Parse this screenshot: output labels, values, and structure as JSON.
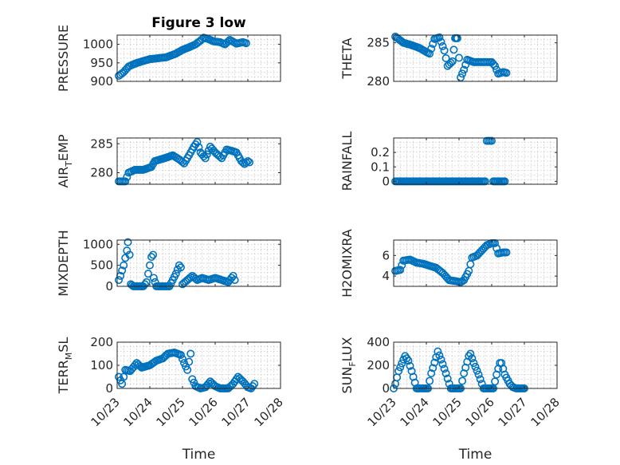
{
  "figure": {
    "title": "Figure 3 low"
  },
  "chart_data": [
    {
      "type": "scatter",
      "id": "pressure",
      "title": "Figure 3 low",
      "xlabel": "",
      "ylabel": "PRESSURE",
      "xlim": [
        0,
        5
      ],
      "ylim": [
        900,
        1025
      ],
      "yticks": [
        900,
        950,
        1000
      ],
      "yticklabels": [
        "900",
        "950",
        "1000"
      ],
      "xticks": [],
      "xticklabels": [],
      "show_yticklabels": true,
      "show_xticklabels": false,
      "grid": true,
      "series": [
        {
          "color": "#0072BD",
          "keys": [
            [
              0.05,
              915
            ],
            [
              0.2,
              925
            ],
            [
              0.35,
              940
            ],
            [
              0.55,
              948
            ],
            [
              0.8,
              955
            ],
            [
              1.0,
              960
            ],
            [
              1.3,
              963
            ],
            [
              1.5,
              965
            ],
            [
              1.8,
              975
            ],
            [
              2.0,
              985
            ],
            [
              2.2,
              992
            ],
            [
              2.4,
              1000
            ],
            [
              2.55,
              1010
            ],
            [
              2.65,
              1018
            ],
            [
              2.8,
              1014
            ],
            [
              2.95,
              1008
            ],
            [
              3.15,
              1006
            ],
            [
              3.3,
              1000
            ],
            [
              3.45,
              1012
            ],
            [
              3.65,
              1002
            ],
            [
              3.85,
              1006
            ],
            [
              3.95,
              1003
            ]
          ]
        }
      ]
    },
    {
      "type": "scatter",
      "id": "theta",
      "title": "",
      "xlabel": "",
      "ylabel": "THETA",
      "xlim": [
        0,
        5
      ],
      "ylim": [
        280,
        286
      ],
      "yticks": [
        280,
        285
      ],
      "yticklabels": [
        "280",
        "285"
      ],
      "xticks": [],
      "xticklabels": [],
      "show_yticklabels": true,
      "show_xticklabels": false,
      "grid": true,
      "series": [
        {
          "color": "#0072BD",
          "keys": [
            [
              0.05,
              285.8
            ],
            [
              0.3,
              285.0
            ],
            [
              0.55,
              284.7
            ],
            [
              0.8,
              284.3
            ],
            [
              1.0,
              283.8
            ],
            [
              1.1,
              283.6
            ],
            [
              1.25,
              285.5
            ],
            [
              1.4,
              285.7
            ],
            [
              1.55,
              284.0
            ],
            [
              1.65,
              282.0
            ],
            [
              1.8,
              282.6
            ],
            [
              1.88,
              285.6
            ],
            [
              1.95,
              285.6
            ],
            [
              2.05,
              280.5
            ],
            [
              2.15,
              281.5
            ],
            [
              2.25,
              282.8
            ],
            [
              2.45,
              282.5
            ],
            [
              2.65,
              282.5
            ],
            [
              2.85,
              282.5
            ],
            [
              3.0,
              282.5
            ],
            [
              3.1,
              282.0
            ],
            [
              3.2,
              281.0
            ],
            [
              3.35,
              281.2
            ],
            [
              3.45,
              281.1
            ]
          ]
        }
      ]
    },
    {
      "type": "scatter",
      "id": "air_temp",
      "title": "",
      "xlabel": "",
      "ylabel": "AIR",
      "ylabel_sub": "T",
      "ylabel_rest": "EMP",
      "xlim": [
        0,
        5
      ],
      "ylim": [
        278,
        286
      ],
      "yticks": [
        280,
        285
      ],
      "yticklabels": [
        "280",
        "285"
      ],
      "xticks": [],
      "xticklabels": [],
      "show_yticklabels": true,
      "show_xticklabels": false,
      "grid": true,
      "series": [
        {
          "color": "#0072BD",
          "keys": [
            [
              0.05,
              278.5
            ],
            [
              0.25,
              278.5
            ],
            [
              0.35,
              280.0
            ],
            [
              0.55,
              280.5
            ],
            [
              0.8,
              280.5
            ],
            [
              1.05,
              281.0
            ],
            [
              1.15,
              282.0
            ],
            [
              1.45,
              282.5
            ],
            [
              1.7,
              283.0
            ],
            [
              1.9,
              282.3
            ],
            [
              2.05,
              281.6
            ],
            [
              2.2,
              283.0
            ],
            [
              2.35,
              284.5
            ],
            [
              2.45,
              285.3
            ],
            [
              2.55,
              283.5
            ],
            [
              2.7,
              282.5
            ],
            [
              2.85,
              284.5
            ],
            [
              3.0,
              283.5
            ],
            [
              3.2,
              282.5
            ],
            [
              3.35,
              284.0
            ],
            [
              3.5,
              283.8
            ],
            [
              3.65,
              283.5
            ],
            [
              3.8,
              282.0
            ],
            [
              3.9,
              281.5
            ],
            [
              4.0,
              282.0
            ],
            [
              4.05,
              281.8
            ]
          ]
        }
      ]
    },
    {
      "type": "scatter",
      "id": "rainfall",
      "title": "",
      "xlabel": "",
      "ylabel": "RAINFALL",
      "xlim": [
        0,
        5
      ],
      "ylim": [
        -0.02,
        0.3
      ],
      "yticks": [
        0,
        0.1,
        0.2
      ],
      "yticklabels": [
        "0",
        "0.1",
        "0.2"
      ],
      "xticks": [],
      "xticklabels": [],
      "show_yticklabels": true,
      "show_xticklabels": false,
      "grid": true,
      "series": [
        {
          "color": "#0072BD",
          "keys": [
            [
              0.05,
              0
            ],
            [
              2.8,
              0
            ],
            [
              2.85,
              0.28
            ],
            [
              2.95,
              0.28
            ],
            [
              3.0,
              0.28
            ],
            [
              3.05,
              0
            ],
            [
              3.4,
              0
            ]
          ]
        }
      ]
    },
    {
      "type": "scatter",
      "id": "mixdepth",
      "title": "",
      "xlabel": "",
      "ylabel": "MIXDEPTH",
      "xlim": [
        0,
        5
      ],
      "ylim": [
        0,
        1100
      ],
      "yticks": [
        0,
        500,
        1000
      ],
      "yticklabels": [
        "0",
        "500",
        "1000"
      ],
      "xticks": [],
      "xticklabels": [],
      "show_yticklabels": true,
      "show_xticklabels": false,
      "grid": true,
      "series": [
        {
          "color": "#0072BD",
          "keys": [
            [
              0.05,
              150
            ],
            [
              0.1,
              250
            ],
            [
              0.2,
              500
            ],
            [
              0.3,
              850
            ],
            [
              0.33,
              1050
            ],
            [
              0.38,
              750
            ],
            [
              0.42,
              50
            ],
            [
              0.5,
              0
            ],
            [
              0.75,
              0
            ],
            [
              0.8,
              0
            ],
            [
              0.9,
              100
            ],
            [
              0.95,
              300
            ],
            [
              1.0,
              500
            ],
            [
              1.05,
              700
            ],
            [
              1.1,
              750
            ],
            [
              1.12,
              200
            ],
            [
              1.2,
              0
            ],
            [
              1.6,
              0
            ],
            [
              1.7,
              150
            ],
            [
              1.8,
              300
            ],
            [
              1.9,
              500
            ],
            [
              1.95,
              450
            ],
            [
              2.0,
              50
            ],
            [
              2.15,
              150
            ],
            [
              2.3,
              250
            ],
            [
              2.45,
              150
            ],
            [
              2.6,
              200
            ],
            [
              2.8,
              150
            ],
            [
              3.0,
              200
            ],
            [
              3.2,
              150
            ],
            [
              3.4,
              100
            ],
            [
              3.55,
              250
            ],
            [
              3.6,
              150
            ]
          ]
        }
      ]
    },
    {
      "type": "scatter",
      "id": "h2omixra",
      "title": "",
      "xlabel": "",
      "ylabel": "H2OMIXRA",
      "xlim": [
        0,
        5
      ],
      "ylim": [
        3,
        7.5
      ],
      "yticks": [
        4,
        6
      ],
      "yticklabels": [
        "4",
        "6"
      ],
      "xticks": [],
      "xticklabels": [],
      "show_yticklabels": true,
      "show_xticklabels": false,
      "grid": true,
      "series": [
        {
          "color": "#0072BD",
          "keys": [
            [
              0.05,
              4.5
            ],
            [
              0.2,
              4.6
            ],
            [
              0.3,
              5.5
            ],
            [
              0.5,
              5.6
            ],
            [
              0.7,
              5.3
            ],
            [
              0.9,
              5.2
            ],
            [
              1.1,
              5.0
            ],
            [
              1.3,
              4.8
            ],
            [
              1.5,
              4.3
            ],
            [
              1.7,
              3.6
            ],
            [
              1.9,
              3.5
            ],
            [
              2.05,
              3.4
            ],
            [
              2.15,
              3.6
            ],
            [
              2.3,
              4.5
            ],
            [
              2.4,
              5.8
            ],
            [
              2.55,
              6.0
            ],
            [
              2.7,
              6.5
            ],
            [
              2.85,
              7.0
            ],
            [
              3.0,
              7.2
            ],
            [
              3.1,
              7.2
            ],
            [
              3.2,
              6.2
            ],
            [
              3.35,
              6.3
            ],
            [
              3.45,
              6.3
            ]
          ]
        }
      ]
    },
    {
      "type": "scatter",
      "id": "terr_msl",
      "title": "",
      "xlabel": "Time",
      "ylabel": "TERR",
      "ylabel_sub": "M",
      "ylabel_rest": "SL",
      "xlim": [
        0,
        5
      ],
      "ylim": [
        0,
        200
      ],
      "yticks": [
        0,
        100,
        200
      ],
      "yticklabels": [
        "0",
        "100",
        "200"
      ],
      "xticks": [
        0,
        1,
        2,
        3,
        4,
        5
      ],
      "xticklabels": [
        "10/23",
        "10/24",
        "10/25",
        "10/26",
        "10/27",
        "10/28"
      ],
      "show_yticklabels": true,
      "show_xticklabels": true,
      "grid": true,
      "series": [
        {
          "color": "#0072BD",
          "keys": [
            [
              0.05,
              50
            ],
            [
              0.15,
              20
            ],
            [
              0.25,
              80
            ],
            [
              0.4,
              75
            ],
            [
              0.6,
              110
            ],
            [
              0.75,
              90
            ],
            [
              1.0,
              100
            ],
            [
              1.2,
              120
            ],
            [
              1.4,
              130
            ],
            [
              1.55,
              150
            ],
            [
              1.75,
              155
            ],
            [
              1.95,
              145
            ],
            [
              2.05,
              110
            ],
            [
              2.15,
              80
            ],
            [
              2.25,
              150
            ],
            [
              2.3,
              40
            ],
            [
              2.4,
              10
            ],
            [
              2.55,
              0
            ],
            [
              2.7,
              5
            ],
            [
              2.85,
              30
            ],
            [
              3.0,
              10
            ],
            [
              3.15,
              0
            ],
            [
              3.4,
              0
            ],
            [
              3.55,
              20
            ],
            [
              3.7,
              50
            ],
            [
              3.85,
              30
            ],
            [
              4.0,
              5
            ],
            [
              4.1,
              0
            ],
            [
              4.2,
              20
            ]
          ]
        }
      ]
    },
    {
      "type": "scatter",
      "id": "sun_flux",
      "title": "",
      "xlabel": "Time",
      "ylabel": "SUN",
      "ylabel_sub": "F",
      "ylabel_rest": "LUX",
      "xlim": [
        0,
        5
      ],
      "ylim": [
        0,
        400
      ],
      "yticks": [
        0,
        200,
        400
      ],
      "yticklabels": [
        "0",
        "200",
        "400"
      ],
      "xticks": [
        0,
        1,
        2,
        3,
        4,
        5
      ],
      "xticklabels": [
        "10/23",
        "10/24",
        "10/25",
        "10/26",
        "10/27",
        "10/28"
      ],
      "show_yticklabels": true,
      "show_xticklabels": true,
      "grid": true,
      "series": [
        {
          "color": "#0072BD",
          "keys": [
            [
              0.0,
              0
            ],
            [
              0.05,
              40
            ],
            [
              0.15,
              150
            ],
            [
              0.3,
              250
            ],
            [
              0.35,
              280
            ],
            [
              0.45,
              240
            ],
            [
              0.55,
              150
            ],
            [
              0.65,
              50
            ],
            [
              0.7,
              0
            ],
            [
              1.05,
              0
            ],
            [
              1.15,
              130
            ],
            [
              1.3,
              270
            ],
            [
              1.35,
              320
            ],
            [
              1.45,
              250
            ],
            [
              1.6,
              130
            ],
            [
              1.7,
              40
            ],
            [
              1.75,
              0
            ],
            [
              2.05,
              0
            ],
            [
              2.15,
              130
            ],
            [
              2.3,
              280
            ],
            [
              2.35,
              300
            ],
            [
              2.45,
              220
            ],
            [
              2.6,
              120
            ],
            [
              2.7,
              40
            ],
            [
              2.75,
              0
            ],
            [
              3.05,
              0
            ],
            [
              3.15,
              120
            ],
            [
              3.25,
              220
            ],
            [
              3.3,
              220
            ],
            [
              3.4,
              120
            ],
            [
              3.55,
              40
            ],
            [
              3.65,
              10
            ],
            [
              3.75,
              0
            ],
            [
              4.0,
              0
            ]
          ]
        }
      ]
    }
  ]
}
